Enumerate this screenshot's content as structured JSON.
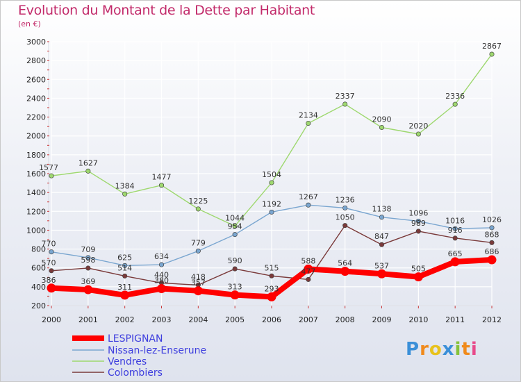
{
  "header": {
    "title": "Evolution du Montant de la Dette par Habitant",
    "subtitle": "(en €)"
  },
  "chart_data": {
    "type": "line",
    "title": "Evolution du Montant de la Dette par Habitant",
    "ylabel": "(en €)",
    "xlabel": "",
    "categories": [
      "2000",
      "2001",
      "2002",
      "2003",
      "2004",
      "2005",
      "2006",
      "2007",
      "2008",
      "2009",
      "2010",
      "2011",
      "2012"
    ],
    "ylim": [
      200,
      3000
    ],
    "yticks": [
      "200",
      "400",
      "600",
      "800",
      "1000",
      "1200",
      "1400",
      "1600",
      "1800",
      "2000",
      "2200",
      "2400",
      "2600",
      "2800",
      "3000"
    ],
    "legend_position": "bottom-left",
    "series": [
      {
        "name": "LESPIGNAN",
        "color": "#ff0000",
        "values": [
          386,
          369,
          311,
          380,
          357,
          313,
          293,
          588,
          564,
          537,
          505,
          665,
          686
        ],
        "labels": [
          "386",
          "369",
          "311",
          "380",
          "357",
          "313",
          "293",
          "588",
          "564",
          "537",
          "505",
          "665",
          "686"
        ]
      },
      {
        "name": "Nissan-lez-Enserune",
        "color": "#7aa6d0",
        "values": [
          770,
          709,
          625,
          634,
          779,
          954,
          1192,
          1267,
          1236,
          1138,
          1096,
          1016,
          1026
        ],
        "labels": [
          "770",
          "709",
          "625",
          "634",
          "779",
          "954",
          "1192",
          "1267",
          "1236",
          "1138",
          "1096",
          "1016",
          "1026"
        ]
      },
      {
        "name": "Vendres",
        "color": "#9ed86f",
        "values": [
          1577,
          1627,
          1384,
          1477,
          1225,
          1044,
          1504,
          2134,
          2337,
          2090,
          2020,
          2336,
          2867
        ],
        "labels": [
          "1577",
          "1627",
          "1384",
          "1477",
          "1225",
          "1044",
          "1504",
          "2134",
          "2337",
          "2090",
          "2020",
          "2336",
          "2867"
        ]
      },
      {
        "name": "Colombiers",
        "color": "#7a3a3a",
        "values": [
          570,
          598,
          514,
          440,
          418,
          590,
          515,
          477,
          1050,
          847,
          989,
          916,
          868
        ],
        "labels": [
          "570",
          "598",
          "514",
          "440",
          "418",
          "590",
          "515",
          "477",
          "1050",
          "847",
          "989",
          "916",
          "868"
        ]
      }
    ]
  },
  "branding": {
    "logo_text": "Proxiti",
    "letters": [
      "P",
      "r",
      "o",
      "x",
      "i",
      "t",
      "i"
    ],
    "letter_colors": [
      "#3a8fd8",
      "#f08a1c",
      "#e8c21c",
      "#3a8fd8",
      "#86c23a",
      "#f08a1c",
      "#e84a8a"
    ]
  }
}
